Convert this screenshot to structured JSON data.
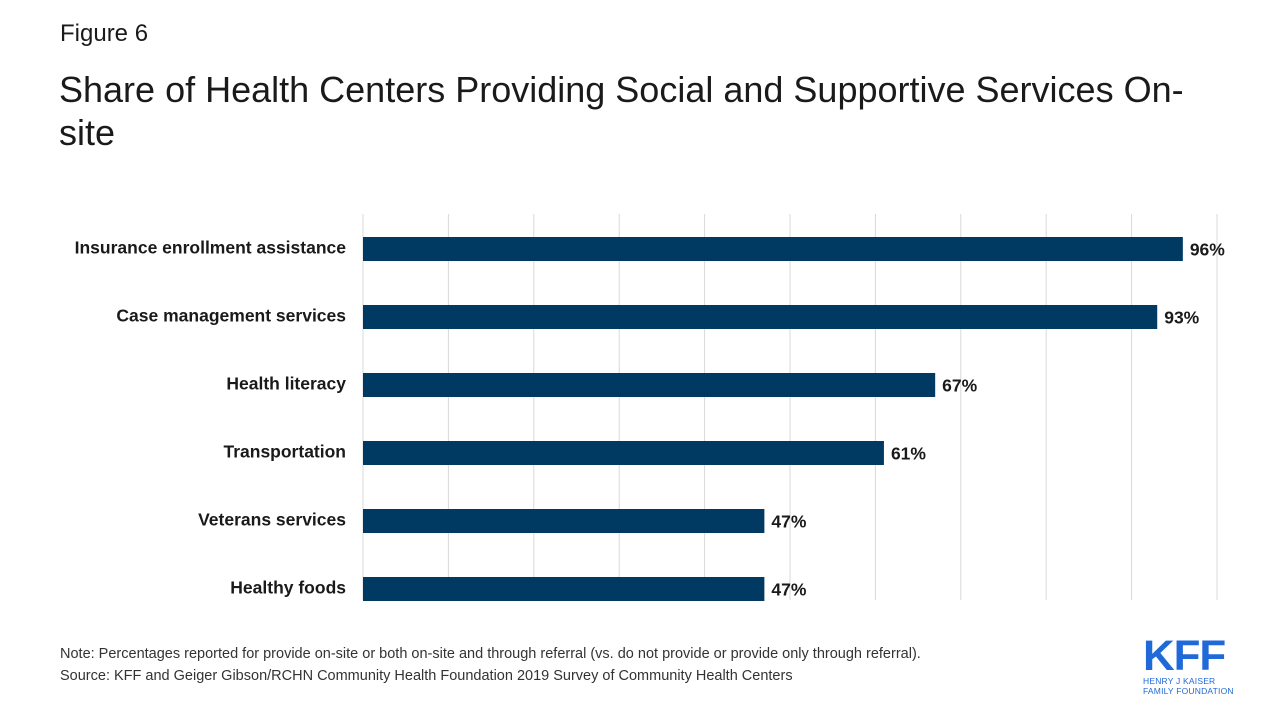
{
  "figure_label": "Figure 6",
  "title": "Share of Health Centers Providing Social and Supportive Services On-site",
  "footer": {
    "note": "Note: Percentages reported for provide on-site or both on-site and through referral (vs. do not provide or provide only through referral).",
    "source": "Source: KFF and Geiger Gibson/RCHN Community Health Foundation 2019 Survey of Community Health Centers"
  },
  "logo": {
    "mark": "KFF",
    "line1": "HENRY J KAISER",
    "line2": "FAMILY FOUNDATION",
    "color": "#1f6ad8"
  },
  "chart_data": {
    "type": "bar",
    "orientation": "horizontal",
    "categories": [
      "Insurance enrollment assistance",
      "Case management services",
      "Health literacy",
      "Transportation",
      "Veterans services",
      "Healthy foods"
    ],
    "values": [
      96,
      93,
      67,
      61,
      47,
      47
    ],
    "data_labels": [
      "96%",
      "93%",
      "67%",
      "61%",
      "47%",
      "47%"
    ],
    "xlim": [
      0,
      100
    ],
    "gridlines": true,
    "bar_color": "#003a63",
    "grid_color": "#d9d9d9"
  }
}
